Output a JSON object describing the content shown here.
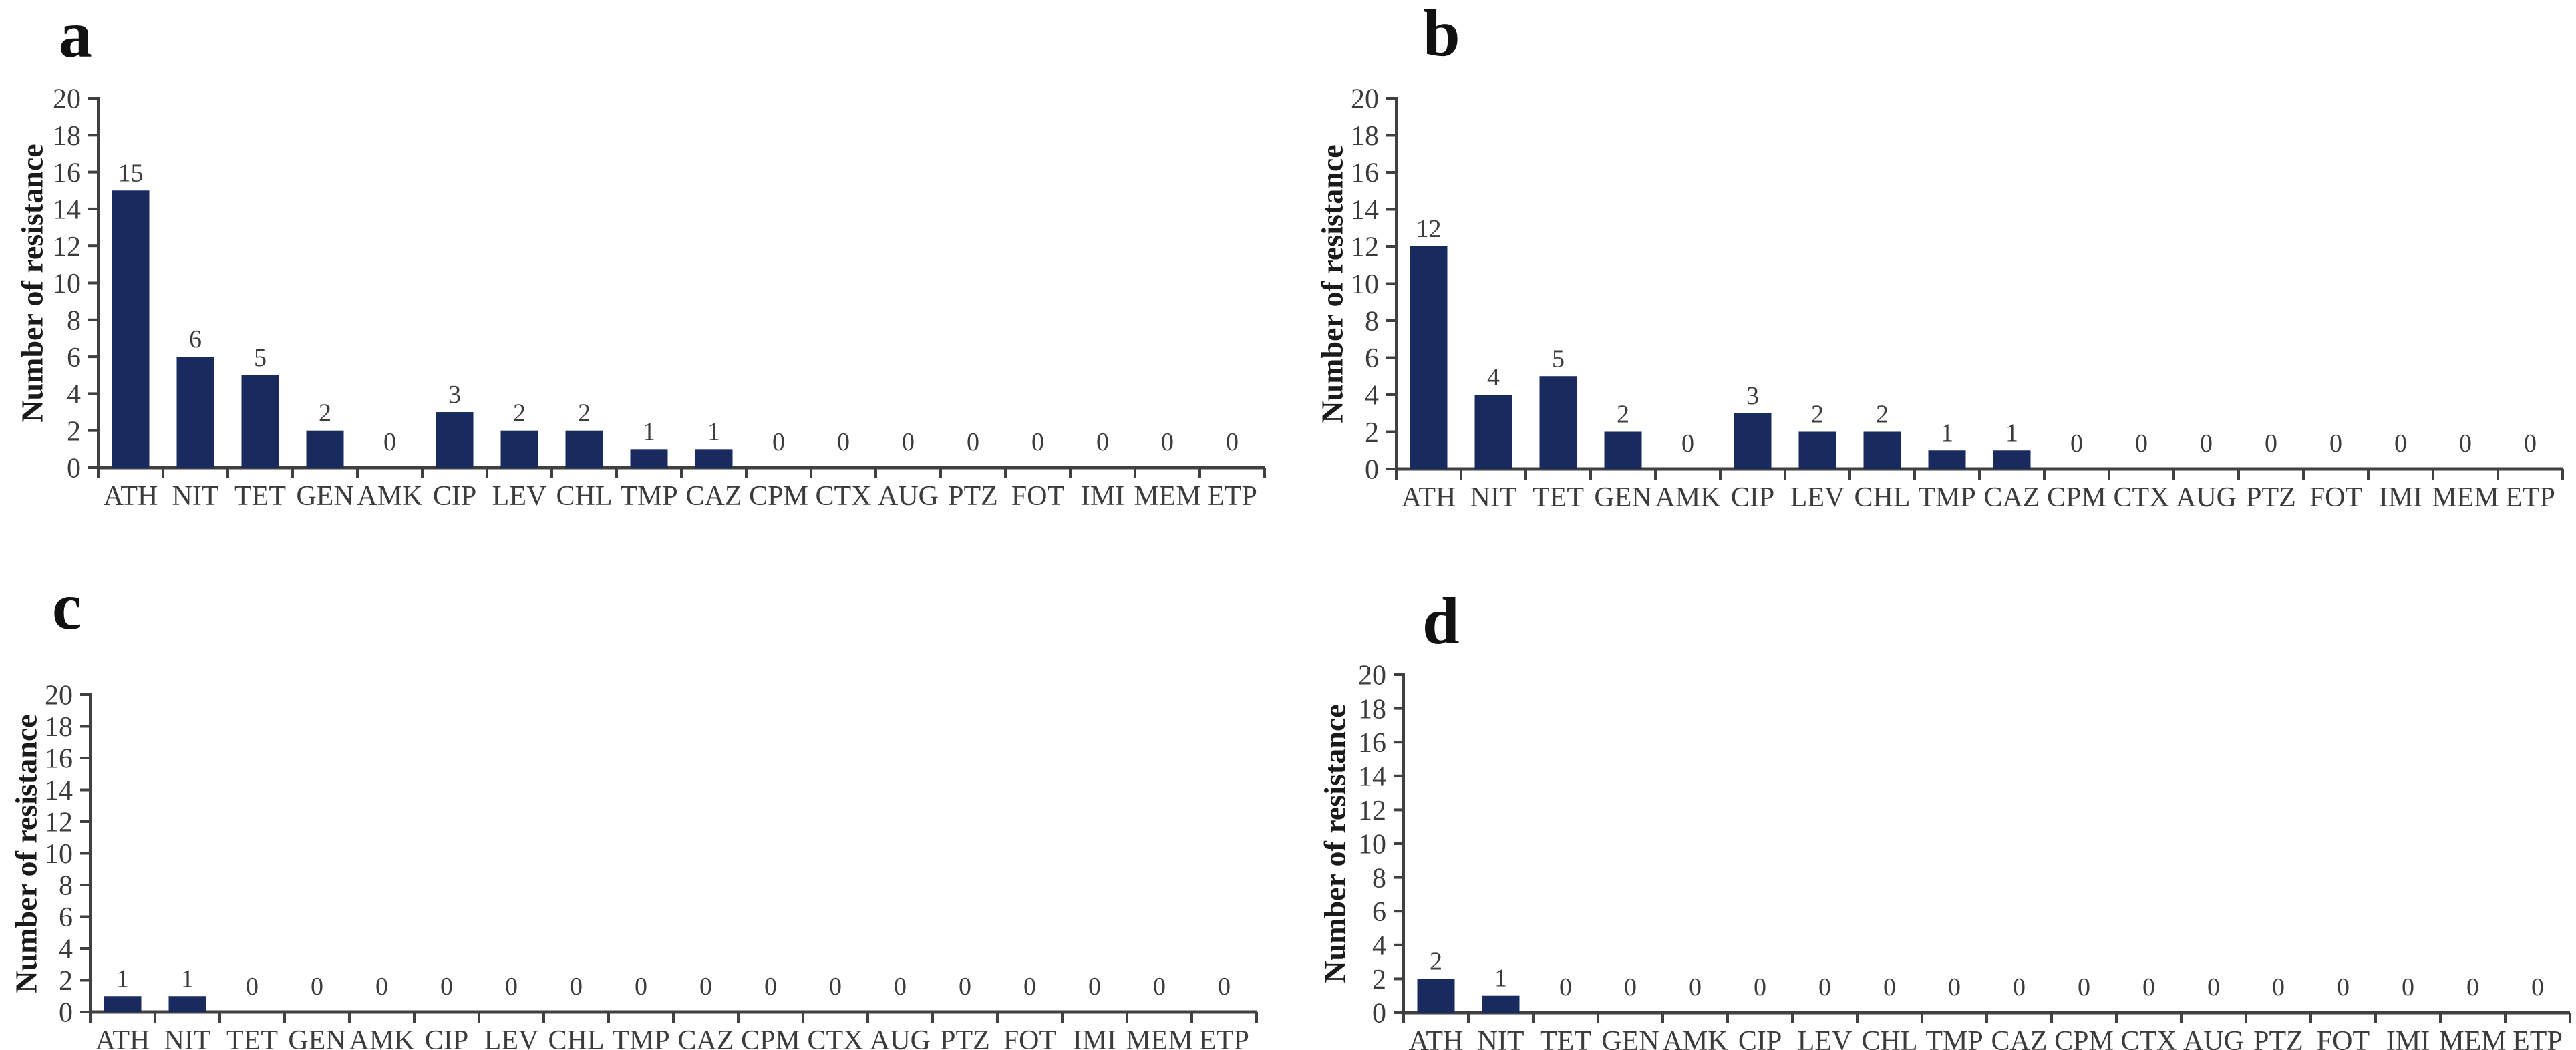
{
  "figure": {
    "background": "#ffffff",
    "bar_color": "#182a5e",
    "axis_color": "#404040",
    "tick_text_color": "#3b3b3b",
    "letter_color": "#111111"
  },
  "chart_data": [
    {
      "panel": "a",
      "type": "bar",
      "title": "",
      "ylabel": "Number of resistance",
      "xlabel": "",
      "ylim": [
        0,
        20
      ],
      "ytick_step": 2,
      "grid": false,
      "legend": "none",
      "categories": [
        "ATH",
        "NIT",
        "TET",
        "GEN",
        "AMK",
        "CIP",
        "LEV",
        "CHL",
        "TMP",
        "CAZ",
        "CPM",
        "CTX",
        "AUG",
        "PTZ",
        "FOT",
        "IMI",
        "MEM",
        "ETP"
      ],
      "values": [
        15,
        6,
        5,
        2,
        0,
        3,
        2,
        2,
        1,
        1,
        0,
        0,
        0,
        0,
        0,
        0,
        0,
        0
      ]
    },
    {
      "panel": "b",
      "type": "bar",
      "title": "",
      "ylabel": "Number of resistance",
      "xlabel": "",
      "ylim": [
        0,
        20
      ],
      "ytick_step": 2,
      "grid": false,
      "legend": "none",
      "categories": [
        "ATH",
        "NIT",
        "TET",
        "GEN",
        "AMK",
        "CIP",
        "LEV",
        "CHL",
        "TMP",
        "CAZ",
        "CPM",
        "CTX",
        "AUG",
        "PTZ",
        "FOT",
        "IMI",
        "MEM",
        "ETP"
      ],
      "values": [
        12,
        4,
        5,
        2,
        0,
        3,
        2,
        2,
        1,
        1,
        0,
        0,
        0,
        0,
        0,
        0,
        0,
        0
      ]
    },
    {
      "panel": "c",
      "type": "bar",
      "title": "",
      "ylabel": "Number of resistance",
      "xlabel": "",
      "ylim": [
        0,
        20
      ],
      "ytick_step": 2,
      "grid": false,
      "legend": "none",
      "categories": [
        "ATH",
        "NIT",
        "TET",
        "GEN",
        "AMK",
        "CIP",
        "LEV",
        "CHL",
        "TMP",
        "CAZ",
        "CPM",
        "CTX",
        "AUG",
        "PTZ",
        "FOT",
        "IMI",
        "MEM",
        "ETP"
      ],
      "values": [
        1,
        1,
        0,
        0,
        0,
        0,
        0,
        0,
        0,
        0,
        0,
        0,
        0,
        0,
        0,
        0,
        0,
        0
      ]
    },
    {
      "panel": "d",
      "type": "bar",
      "title": "",
      "ylabel": "Number of resistance",
      "xlabel": "",
      "ylim": [
        0,
        20
      ],
      "ytick_step": 2,
      "grid": false,
      "legend": "none",
      "categories": [
        "ATH",
        "NIT",
        "TET",
        "GEN",
        "AMK",
        "CIP",
        "LEV",
        "CHL",
        "TMP",
        "CAZ",
        "CPM",
        "CTX",
        "AUG",
        "PTZ",
        "FOT",
        "IMI",
        "MEM",
        "ETP"
      ],
      "values": [
        2,
        1,
        0,
        0,
        0,
        0,
        0,
        0,
        0,
        0,
        0,
        0,
        0,
        0,
        0,
        0,
        0,
        0
      ]
    }
  ]
}
